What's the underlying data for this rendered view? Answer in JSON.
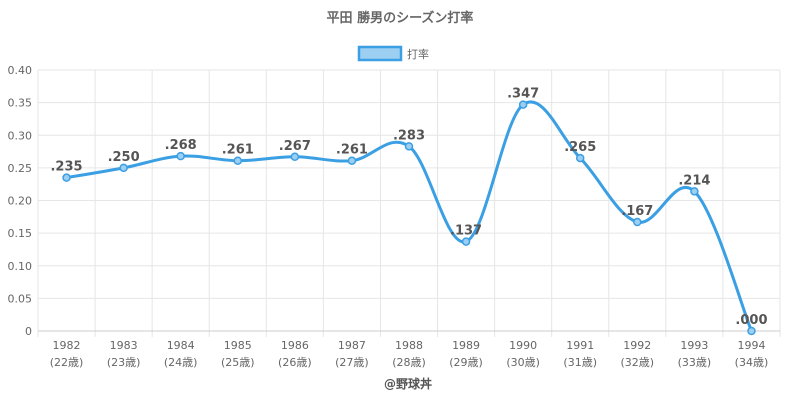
{
  "chart_data": {
    "type": "line",
    "title": "平田 勝男のシーズン打率",
    "legend": {
      "position": "top",
      "label": "打率"
    },
    "categories": [
      "1982",
      "1983",
      "1984",
      "1985",
      "1986",
      "1987",
      "1988",
      "1989",
      "1990",
      "1991",
      "1992",
      "1993",
      "1994"
    ],
    "ages": [
      "(22歳)",
      "(23歳)",
      "(24歳)",
      "(25歳)",
      "(26歳)",
      "(27歳)",
      "(28歳)",
      "(29歳)",
      "(30歳)",
      "(31歳)",
      "(32歳)",
      "(33歳)",
      "(34歳)"
    ],
    "series": [
      {
        "name": "打率",
        "values": [
          0.235,
          0.25,
          0.268,
          0.261,
          0.267,
          0.261,
          0.283,
          0.137,
          0.347,
          0.265,
          0.167,
          0.214,
          0.0
        ],
        "labels": [
          ".235",
          ".250",
          ".268",
          ".261",
          ".267",
          ".261",
          ".283",
          ".137",
          ".347",
          ".265",
          ".167",
          ".214",
          ".000"
        ]
      }
    ],
    "ylim": [
      0,
      0.4
    ],
    "yticks": [
      "0",
      "0.05",
      "0.10",
      "0.15",
      "0.20",
      "0.25",
      "0.30",
      "0.35",
      "0.40"
    ],
    "grid": true,
    "credit": "@野球丼",
    "colors": {
      "line": "#3b9fe3",
      "legend_fill": "#9ccff2",
      "grid": "#e6e6e6",
      "text": "#666666",
      "label": "#555555"
    }
  }
}
